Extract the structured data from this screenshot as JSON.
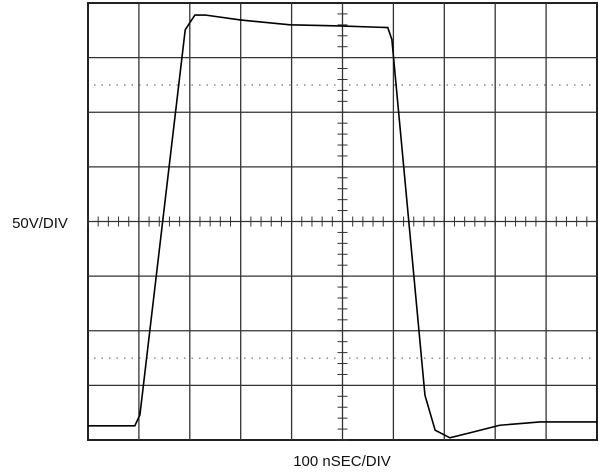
{
  "chart_data": {
    "type": "line",
    "ylabel": "50V/DIV",
    "xlabel": "100 nSEC/DIV",
    "x": [
      0,
      0.92,
      1.02,
      1.91,
      2.1,
      2.3,
      2.99,
      3.97,
      4.95,
      5.89,
      5.97,
      6.62,
      6.82,
      7.11,
      7.5,
      8.09,
      8.88,
      10
    ],
    "series": [
      {
        "color": "#000000",
        "values": [
          0.26,
          0.26,
          0.46,
          7.51,
          7.78,
          7.78,
          7.69,
          7.6,
          7.58,
          7.55,
          7.33,
          0.82,
          0.18,
          0.04,
          0.13,
          0.27,
          0.33,
          0.33
        ]
      }
    ],
    "xlim": [
      0,
      10
    ],
    "ylim": [
      0,
      8
    ],
    "grid": true
  }
}
